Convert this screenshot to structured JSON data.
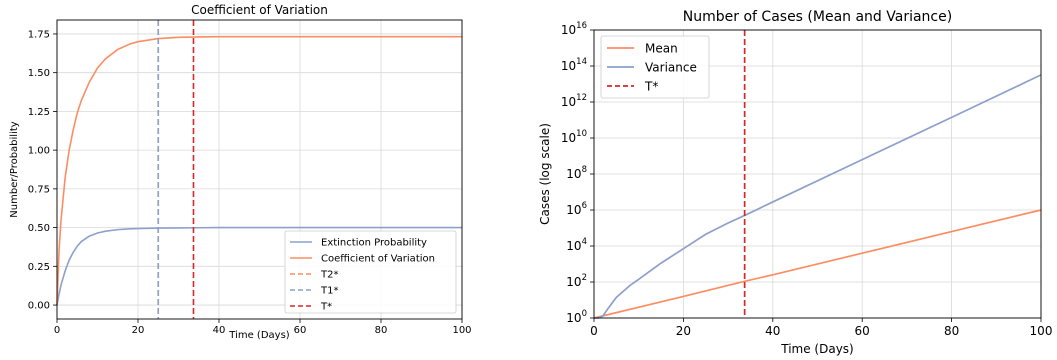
{
  "chart_data": [
    {
      "type": "line",
      "title": "Coefficient of Variation",
      "xlabel": "Time (Days)",
      "ylabel": "Number/Probability",
      "xlim": [
        0,
        100
      ],
      "ylim": [
        -0.09,
        1.84
      ],
      "xticks": [
        0,
        20,
        40,
        60,
        80,
        100
      ],
      "yticks": [
        0.0,
        0.25,
        0.5,
        0.75,
        1.0,
        1.25,
        1.5,
        1.75
      ],
      "ytick_labels": [
        "0.00",
        "0.25",
        "0.50",
        "0.75",
        "1.00",
        "1.25",
        "1.50",
        "1.75"
      ],
      "grid": true,
      "legend_position": "lower-right",
      "series": [
        {
          "name": "Extinction Probability",
          "color": "#8DA0CB",
          "style": "solid",
          "x": [
            0,
            0.5,
            1,
            2,
            3,
            4,
            5,
            6,
            8,
            10,
            12,
            15,
            18,
            20,
            25,
            30,
            35,
            40,
            50,
            60,
            80,
            100
          ],
          "y": [
            0.0,
            0.07,
            0.13,
            0.22,
            0.29,
            0.34,
            0.38,
            0.41,
            0.445,
            0.465,
            0.477,
            0.487,
            0.492,
            0.494,
            0.497,
            0.498,
            0.499,
            0.5,
            0.5,
            0.5,
            0.5,
            0.5
          ]
        },
        {
          "name": "Coefficient of Variation",
          "color": "#FC8D62",
          "style": "solid",
          "x": [
            0,
            0.5,
            1,
            2,
            3,
            4,
            5,
            6,
            8,
            10,
            12,
            15,
            18,
            20,
            25,
            30,
            35,
            40,
            50,
            60,
            80,
            100
          ],
          "y": [
            0.0,
            0.35,
            0.55,
            0.82,
            1.0,
            1.13,
            1.24,
            1.32,
            1.44,
            1.53,
            1.59,
            1.65,
            1.685,
            1.7,
            1.72,
            1.728,
            1.731,
            1.732,
            1.732,
            1.732,
            1.732,
            1.732
          ]
        },
        {
          "name": "T2*",
          "color": "#FC8D62",
          "style": "dashed",
          "vline": 25
        },
        {
          "name": "T1*",
          "color": "#8DA0CB",
          "style": "dashed",
          "vline": 25
        },
        {
          "name": "T*",
          "color": "#D62728",
          "style": "dashed",
          "vline": 33.7
        }
      ]
    },
    {
      "type": "line",
      "title": "Number of Cases (Mean and Variance)",
      "xlabel": "Time (Days)",
      "ylabel": "Cases (log scale)",
      "yscale": "log",
      "xlim": [
        0,
        100
      ],
      "ylim": [
        1,
        1e+16
      ],
      "xticks": [
        0,
        20,
        40,
        60,
        80,
        100
      ],
      "yticks_exp": [
        0,
        2,
        4,
        6,
        8,
        10,
        12,
        14,
        16
      ],
      "ytick_base": "10",
      "grid": true,
      "legend_position": "top-left",
      "series": [
        {
          "name": "Mean",
          "color": "#FC8D62",
          "style": "solid",
          "x": [
            0,
            20,
            33.7,
            40,
            60,
            80,
            100
          ],
          "y": [
            1,
            15.8,
            109.6,
            251,
            3981,
            63096,
            1000000.0
          ]
        },
        {
          "name": "Variance",
          "color": "#8DA0CB",
          "style": "solid",
          "x": [
            0,
            1,
            2,
            3,
            5,
            8,
            10,
            15,
            20,
            25,
            30,
            33.7,
            40,
            60,
            80,
            100
          ],
          "y": [
            1,
            1,
            1.3,
            3,
            14,
            63,
            141,
            1122,
            7079,
            44668,
            190000.0,
            500000.0,
            2800000.0,
            630000000.0,
            140000000000.0,
            32000000000000.0
          ]
        },
        {
          "name": "T*",
          "color": "#D62728",
          "style": "dashed",
          "vline": 33.7
        }
      ]
    }
  ]
}
